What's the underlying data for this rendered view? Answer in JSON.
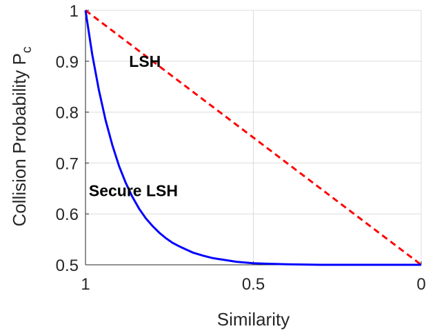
{
  "chart_data": {
    "type": "line",
    "title": "",
    "xlabel": "Similarity",
    "ylabel": "Collision Probability P",
    "ylabel_subscript": "c",
    "x_reversed": true,
    "xlim": [
      0,
      1
    ],
    "ylim": [
      0.5,
      1
    ],
    "xticks": [
      1,
      0.5,
      0
    ],
    "xtick_labels": [
      "1",
      "0.5",
      "0"
    ],
    "yticks": [
      0.5,
      0.6,
      0.7,
      0.8,
      0.9,
      1
    ],
    "ytick_labels": [
      "0.5",
      "0.6",
      "0.7",
      "0.8",
      "0.9",
      "1"
    ],
    "grid": true,
    "series": [
      {
        "name": "LSH",
        "color": "#ff0000",
        "style": "dashed",
        "x": [
          1,
          0.9,
          0.8,
          0.7,
          0.6,
          0.5,
          0.4,
          0.3,
          0.2,
          0.1,
          0
        ],
        "y": [
          1,
          0.95,
          0.9,
          0.85,
          0.8,
          0.75,
          0.7,
          0.65,
          0.6,
          0.55,
          0.5
        ]
      },
      {
        "name": "Secure LSH",
        "color": "#0000ff",
        "style": "solid",
        "x": [
          1,
          0.98,
          0.96,
          0.94,
          0.92,
          0.9,
          0.88,
          0.86,
          0.84,
          0.82,
          0.8,
          0.78,
          0.76,
          0.74,
          0.72,
          0.7,
          0.68,
          0.65,
          0.62,
          0.6,
          0.55,
          0.5,
          0.4,
          0.3,
          0.2,
          0.1,
          0
        ],
        "y": [
          1,
          0.914,
          0.843,
          0.784,
          0.735,
          0.694,
          0.661,
          0.633,
          0.61,
          0.591,
          0.576,
          0.563,
          0.552,
          0.543,
          0.536,
          0.53,
          0.524,
          0.518,
          0.513,
          0.511,
          0.506,
          0.503,
          0.501,
          0.5,
          0.5,
          0.5,
          0.5
        ]
      }
    ],
    "annotations": [
      {
        "text": "LSH",
        "x": 0.87,
        "y": 0.9
      },
      {
        "text": "Secure LSH",
        "x": 0.99,
        "y": 0.646
      }
    ]
  }
}
